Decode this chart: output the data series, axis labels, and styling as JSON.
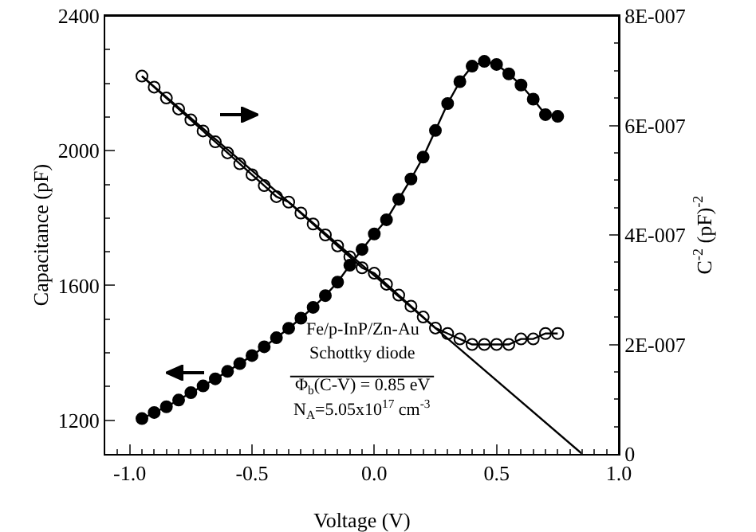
{
  "chart_data": {
    "type": "line",
    "xlabel": "Voltage (V)",
    "ylabel": "Capacitance (pF)",
    "y2label": "C$^{-2}$ (pF)$^{-2}$",
    "x": [
      -0.95,
      -0.9,
      -0.85,
      -0.8,
      -0.75,
      -0.7,
      -0.65,
      -0.6,
      -0.55,
      -0.5,
      -0.45,
      -0.4,
      -0.35,
      -0.3,
      -0.25,
      -0.2,
      -0.15,
      -0.1,
      -0.05,
      0,
      0.05,
      0.1,
      0.15,
      0.2,
      0.25,
      0.3,
      0.35,
      0.4,
      0.45,
      0.5,
      0.55,
      0.6,
      0.65,
      0.7,
      0.75
    ],
    "series": [
      {
        "color": "#000000",
        "marker": "circle",
        "values": [
          1205,
          1223,
          1240,
          1260,
          1282,
          1302,
          1323,
          1345,
          1368,
          1392,
          1418,
          1445,
          1473,
          1503,
          1535,
          1570,
          1610,
          1660,
          1707,
          1753,
          1795,
          1856,
          1916,
          1981,
          2060,
          2140,
          2205,
          2251,
          2265,
          2256,
          2228,
          2195,
          2153,
          2107,
          2102
        ]
      },
      {
        "color": "#000000",
        "marker": "circle",
        "axis": "y2",
        "values": [
          6.9e-07,
          6.7e-07,
          6.5e-07,
          6.3e-07,
          6.1e-07,
          5.9e-07,
          5.7e-07,
          5.5e-07,
          5.3e-07,
          5.1e-07,
          4.9e-07,
          4.7e-07,
          4.6e-07,
          4.4e-07,
          4.2e-07,
          4e-07,
          3.8e-07,
          3.6e-07,
          3.4e-07,
          3.3e-07,
          3.1e-07,
          2.9e-07,
          2.7e-07,
          2.5e-07,
          2.3e-07,
          2.2e-07,
          2.1e-07,
          2e-07,
          2e-07,
          2e-07,
          2e-07,
          2.1e-07,
          2.1e-07,
          2.2e-07,
          2.2e-07
        ]
      },
      {
        "type": "line",
        "color": "#000000",
        "marker": "none",
        "axis": "y2",
        "x": [
          -0.95,
          0.85
        ],
        "values": [
          6.9e-07,
          0
        ]
      }
    ],
    "xlim": [
      -1.1,
      1.0
    ],
    "xticks": [
      {
        "value": -1,
        "label": "-1.0"
      },
      -0.5,
      {
        "value": 0,
        "label": "0.0"
      },
      0.5,
      {
        "value": 1,
        "label": "1.0"
      }
    ],
    "ylim": [
      1100,
      2400
    ],
    "yticks": [
      1200,
      1600,
      2000,
      2400
    ],
    "y2lim": [
      0,
      8e-07
    ],
    "y2ticks": [
      0,
      {
        "value": 2e-07,
        "label": "2E-007"
      },
      {
        "value": 4e-07,
        "label": "4E-007"
      },
      {
        "value": 6e-07,
        "label": "6E-007"
      },
      {
        "value": 8e-07,
        "label": "8E-007"
      }
    ],
    "annotations": [
      "Fe/p-InP/Zn-Au",
      "Schottky diode",
      "Φ$_{b}$(C-V) = 0.85 eV",
      "N$_{A}$=5.05x10$^{17}$ cm$^{-3}$"
    ],
    "grid": false,
    "line_style": "solid"
  }
}
